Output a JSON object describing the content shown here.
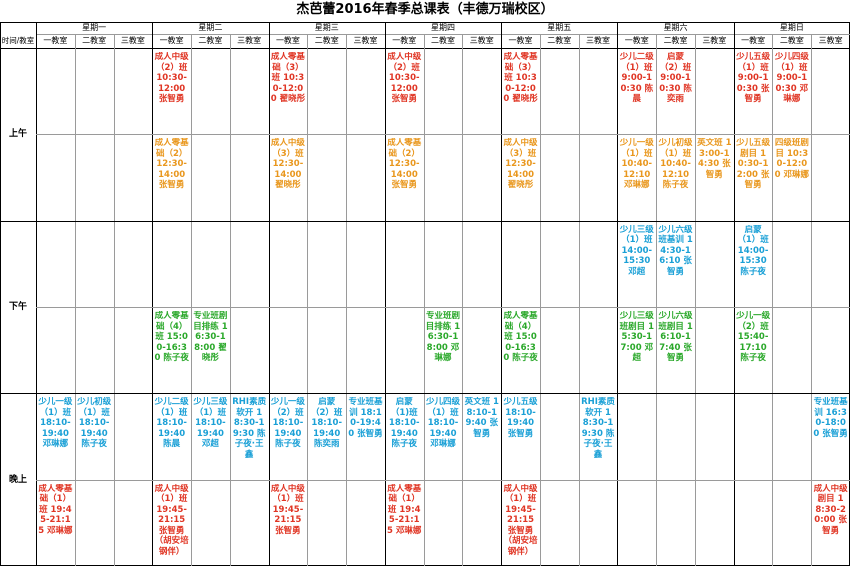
{
  "title": "杰芭蕾2016年春季总课表（丰德万瑞校区）",
  "corner_label": "时间/教室",
  "rooms": [
    "一教室",
    "二教室",
    "三教室"
  ],
  "days": [
    "星期一",
    "星期二",
    "星期三",
    "星期四",
    "星期五",
    "星期六",
    "星期日"
  ],
  "slots": [
    "上午",
    "下午",
    "晚上"
  ],
  "colors": {
    "adult": "#e03524",
    "zero_basic": "#e9971d",
    "afternoon": "#2aa82a",
    "evening": "#1aa0d6"
  },
  "classes": [
    {
      "text": "成人中级（2）班 10:30-12:00 张智勇",
      "day": 1,
      "room": 0,
      "row": 0,
      "color": "red"
    },
    {
      "text": "成人零基础（2）12:30-14:00张智勇",
      "day": 1,
      "room": 0,
      "row": 1,
      "color": "orange"
    },
    {
      "text": "成人零基础（3）班 10:30-12:00 翟晓彤",
      "day": 2,
      "room": 0,
      "row": 0,
      "color": "red"
    },
    {
      "text": "成人中级（3）班 12:30-14:00 翟晓彤",
      "day": 2,
      "room": 0,
      "row": 1,
      "color": "orange"
    },
    {
      "text": "成人中级（2）班 10:30-12:00 张智勇",
      "day": 3,
      "room": 0,
      "row": 0,
      "color": "red"
    },
    {
      "text": "成人零基础（2）12:30-14:00 张智勇",
      "day": 3,
      "room": 0,
      "row": 1,
      "color": "orange"
    },
    {
      "text": "成人零基础（3）班 10:30-12:00 翟晓彤",
      "day": 4,
      "room": 0,
      "row": 0,
      "color": "red"
    },
    {
      "text": "成人中级（3）班 12:30-14:00 翟晓彤",
      "day": 4,
      "room": 0,
      "row": 1,
      "color": "orange"
    },
    {
      "text": "少儿二级（1）班 9:00-10:30 陈晨",
      "day": 5,
      "room": 0,
      "row": 0,
      "color": "red"
    },
    {
      "text": "启蒙（2）班 9:00-10:30 陈奕雨",
      "day": 5,
      "room": 1,
      "row": 0,
      "color": "red"
    },
    {
      "text": "少儿一级（1）班 10:40-12:10 邓琳娜",
      "day": 5,
      "room": 0,
      "row": 1,
      "color": "orange"
    },
    {
      "text": "少儿初级（1）班 10:40-12:10 陈子夜",
      "day": 5,
      "room": 1,
      "row": 1,
      "color": "orange"
    },
    {
      "text": "英文班 13:00-14:30 张智勇",
      "day": 5,
      "room": 2,
      "row": 1,
      "color": "orange"
    },
    {
      "text": "少儿五级（1）班 9:00-10:30 张智勇",
      "day": 6,
      "room": 0,
      "row": 0,
      "color": "red"
    },
    {
      "text": "少儿四级（1）班 9:00-10:30 邓琳娜",
      "day": 6,
      "room": 1,
      "row": 0,
      "color": "red"
    },
    {
      "text": "少儿五级剧目 10:30-12:00 张智勇",
      "day": 6,
      "room": 0,
      "row": 1,
      "color": "orange"
    },
    {
      "text": "四级班剧目 10:30-12:00 邓琳娜",
      "day": 6,
      "room": 1,
      "row": 1,
      "color": "orange"
    },
    {
      "text": "少儿三级（1）班 14:00-15:30 邓超",
      "day": 5,
      "room": 0,
      "row": 2,
      "color": "blue"
    },
    {
      "text": "少儿六级班基训 14:30-16:10 张智勇",
      "day": 5,
      "room": 1,
      "row": 2,
      "color": "blue"
    },
    {
      "text": "启蒙（1）班 14:00-15:30 陈子夜",
      "day": 6,
      "room": 0,
      "row": 2,
      "color": "blue"
    },
    {
      "text": "成人零基础（4）班 15:00-16:30 陈子夜",
      "day": 1,
      "room": 0,
      "row": 3,
      "color": "green"
    },
    {
      "text": "专业班剧目排练 16:30-18:00 翟晓彤",
      "day": 1,
      "room": 1,
      "row": 3,
      "color": "green"
    },
    {
      "text": "专业班剧目排练 16:30-18:00 邓琳娜",
      "day": 3,
      "room": 1,
      "row": 3,
      "color": "green"
    },
    {
      "text": "成人零基础（4）班 15:00-16:30 陈子夜",
      "day": 4,
      "room": 0,
      "row": 3,
      "color": "green"
    },
    {
      "text": "少儿三级班剧目 15:30-17:00 邓超",
      "day": 5,
      "room": 0,
      "row": 3,
      "color": "green"
    },
    {
      "text": "少儿六级班剧目 16:10-17:40 张智勇",
      "day": 5,
      "room": 1,
      "row": 3,
      "color": "green"
    },
    {
      "text": "少儿一级（2）班 15:40-17:10 陈子夜",
      "day": 6,
      "room": 0,
      "row": 3,
      "color": "green"
    },
    {
      "text": "少儿一级（1）班 18:10-19:40 邓琳娜",
      "day": 0,
      "room": 0,
      "row": 4,
      "color": "blue"
    },
    {
      "text": "少儿初级（1）班 18:10-19:40 陈子夜",
      "day": 0,
      "room": 1,
      "row": 4,
      "color": "blue"
    },
    {
      "text": "少儿二级（1）班 18:10-19:40 陈晨",
      "day": 1,
      "room": 0,
      "row": 4,
      "color": "blue"
    },
    {
      "text": "少儿三级（1）班 18:10-19:40 邓超",
      "day": 1,
      "room": 1,
      "row": 4,
      "color": "blue"
    },
    {
      "text": "RHI素质软开 18:30-19:30 陈子夜·王鑫",
      "day": 1,
      "room": 2,
      "row": 4,
      "color": "blue"
    },
    {
      "text": "少儿一级（2）班 18:10-19:40 陈子夜",
      "day": 2,
      "room": 0,
      "row": 4,
      "color": "blue"
    },
    {
      "text": "启蒙（2）班 18:10-19:40 陈奕雨",
      "day": 2,
      "room": 1,
      "row": 4,
      "color": "blue"
    },
    {
      "text": "专业班基训 18:10-19:40 张智勇",
      "day": 2,
      "room": 2,
      "row": 4,
      "color": "blue"
    },
    {
      "text": "启蒙（1)班 18:10-19:40 陈子夜",
      "day": 3,
      "room": 0,
      "row": 4,
      "color": "blue"
    },
    {
      "text": "少儿四级（1）班 18:10-19:40 邓琳娜",
      "day": 3,
      "room": 1,
      "row": 4,
      "color": "blue"
    },
    {
      "text": "英文班 18:10-19:40 张智勇",
      "day": 3,
      "room": 2,
      "row": 4,
      "color": "blue"
    },
    {
      "text": "少儿五级 18:10-19:40 张智勇",
      "day": 4,
      "room": 0,
      "row": 4,
      "color": "blue"
    },
    {
      "text": "RHI素质软开 18:30-19:30 陈子夜·王鑫",
      "day": 4,
      "room": 2,
      "row": 4,
      "color": "blue"
    },
    {
      "text": "专业班基训 16:30-18:00 张智勇",
      "day": 6,
      "room": 2,
      "row": 4,
      "color": "blue"
    },
    {
      "text": "成人零基础（1）班 19:45-21:15 邓琳娜",
      "day": 0,
      "room": 0,
      "row": 5,
      "color": "red"
    },
    {
      "text": "成人中级（1）班 19:45-21:15 张智勇（胡安培钢伴）",
      "day": 1,
      "room": 0,
      "row": 5,
      "color": "red"
    },
    {
      "text": "成人中级（1）班 19:45-21:15 张智勇",
      "day": 2,
      "room": 0,
      "row": 5,
      "color": "red"
    },
    {
      "text": "成人零基础（1）班 19:45-21:15 邓琳娜",
      "day": 3,
      "room": 0,
      "row": 5,
      "color": "red"
    },
    {
      "text": "成人中级（1）班 19:45-21:15 张智勇（胡安培钢伴）",
      "day": 4,
      "room": 0,
      "row": 5,
      "color": "red"
    },
    {
      "text": "成人中级剧目 18:30-20:00 张智勇",
      "day": 6,
      "room": 2,
      "row": 5,
      "color": "red"
    }
  ]
}
